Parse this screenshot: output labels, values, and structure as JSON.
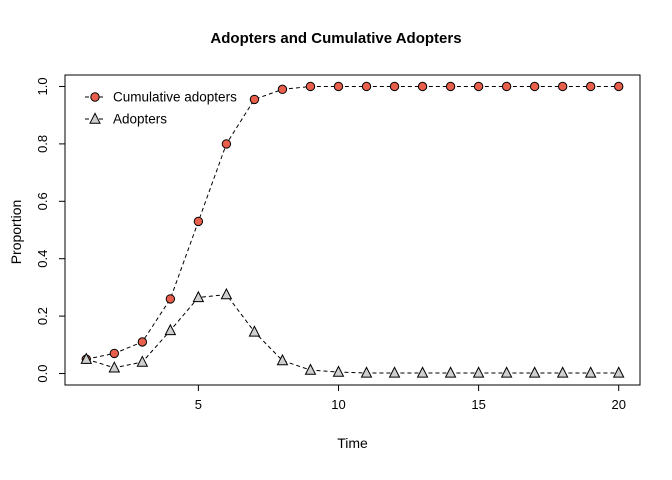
{
  "chart_data": {
    "type": "line",
    "title": "Adopters and Cumulative Adopters",
    "xlabel": "Time",
    "ylabel": "Proportion",
    "xlim": [
      1,
      20
    ],
    "ylim": [
      0,
      1
    ],
    "grid": false,
    "x_ticks": {
      "values": [
        5,
        10,
        15,
        20
      ],
      "labels": [
        "5",
        "10",
        "15",
        "20"
      ]
    },
    "y_ticks": {
      "values": [
        0,
        0.2,
        0.4,
        0.6,
        0.8,
        1.0
      ],
      "labels": [
        "0.0",
        "0.2",
        "0.4",
        "0.6",
        "0.8",
        "1.0"
      ]
    },
    "x": [
      1,
      2,
      3,
      4,
      5,
      6,
      7,
      8,
      9,
      10,
      11,
      12,
      13,
      14,
      15,
      16,
      17,
      18,
      19,
      20
    ],
    "series": [
      {
        "name": "Cumulative adopters",
        "marker": "circle",
        "marker_fill": "#e8604c",
        "line_color": "#000000",
        "line_style": "dashed",
        "values": [
          0.05,
          0.07,
          0.11,
          0.26,
          0.53,
          0.8,
          0.955,
          0.99,
          1.0,
          1.0,
          1.0,
          1.0,
          1.0,
          1.0,
          1.0,
          1.0,
          1.0,
          1.0,
          1.0,
          1.0
        ]
      },
      {
        "name": "Adopters",
        "marker": "triangle",
        "marker_fill": "#cfcfcf",
        "line_color": "#000000",
        "line_style": "dashed",
        "values": [
          0.05,
          0.02,
          0.04,
          0.15,
          0.265,
          0.275,
          0.145,
          0.045,
          0.012,
          0.005,
          0.002,
          0.002,
          0.002,
          0.002,
          0.002,
          0.002,
          0.002,
          0.002,
          0.002,
          0.002
        ]
      }
    ],
    "legend": {
      "position": "top-left",
      "entries": [
        "Cumulative adopters",
        "Adopters"
      ]
    },
    "colors": {
      "axis": "#000000",
      "background": "#ffffff"
    }
  }
}
